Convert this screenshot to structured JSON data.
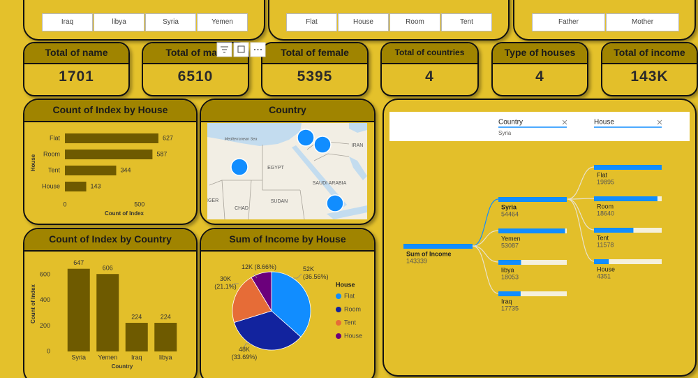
{
  "slicers": [
    {
      "items": [
        "Iraq",
        "libya",
        "Syria",
        "Yemen"
      ]
    },
    {
      "items": [
        "Flat",
        "House",
        "Room",
        "Tent"
      ]
    },
    {
      "items": [
        "Father",
        "Mother"
      ]
    }
  ],
  "cards": [
    {
      "title": "Total of name",
      "value": 1701
    },
    {
      "title": "Total of male",
      "value": 6510
    },
    {
      "title": "Total of female",
      "value": 5395
    },
    {
      "title": "Total of countries",
      "value": 4
    },
    {
      "title": "Type of houses",
      "value": 4
    },
    {
      "title": "Total of income",
      "value": "143K"
    }
  ],
  "chart_data": [
    {
      "type": "bar",
      "title": "Count of Index by House",
      "categories": [
        "Flat",
        "Room",
        "Tent",
        "House"
      ],
      "values": [
        627,
        587,
        344,
        143
      ],
      "color": "#6e5a00",
      "xlim": [
        0,
        660
      ],
      "xticks": [
        0,
        500
      ],
      "xlabel": "Count of Index",
      "ylabel": "House",
      "data_labels": true
    },
    {
      "type": "column",
      "title": "Count of Index by Country",
      "categories": [
        "Syria",
        "Yemen",
        "Iraq",
        "libya"
      ],
      "values": [
        647,
        606,
        224,
        224
      ],
      "color": "#6e5a00",
      "ylim": [
        0,
        700
      ],
      "yticks": [
        0,
        200,
        400,
        600
      ],
      "xlabel": "Country",
      "ylabel": "Count of Index",
      "data_labels": true
    },
    {
      "type": "pie",
      "title": "Sum of Income by House",
      "categories": [
        "Flat",
        "Room",
        "Tent",
        "House"
      ],
      "values": [
        36.56,
        33.69,
        21.1,
        8.66
      ],
      "value_labels": [
        "52K (36.56%)",
        "48K (33.69%)",
        "30K (21.1%)",
        "12K (8.66%)"
      ],
      "colors": [
        "#118dff",
        "#12239e",
        "#e66c37",
        "#6b007b"
      ],
      "legend_title": "House",
      "legend": "right"
    }
  ],
  "map": {
    "title": "Country",
    "labels": [
      "Mediterranean Sea",
      "EGYPT",
      "SAUDI ARABIA",
      "SUDAN",
      "CHAD",
      "IRAN",
      "NIGER"
    ]
  },
  "decomposition_tree": {
    "levels": [
      "Country",
      "House"
    ],
    "filter": "Syria",
    "root": {
      "label": "Sum of Income",
      "value": 143339
    },
    "level1": [
      {
        "label": "Syria",
        "value": 54464
      },
      {
        "label": "Yemen",
        "value": 53087
      },
      {
        "label": "libya",
        "value": 18053
      },
      {
        "label": "Iraq",
        "value": 17735
      }
    ],
    "level2": [
      {
        "label": "Flat",
        "value": 19895
      },
      {
        "label": "Room",
        "value": 18640
      },
      {
        "label": "Tent",
        "value": 11578
      },
      {
        "label": "House",
        "value": 4351
      }
    ]
  }
}
